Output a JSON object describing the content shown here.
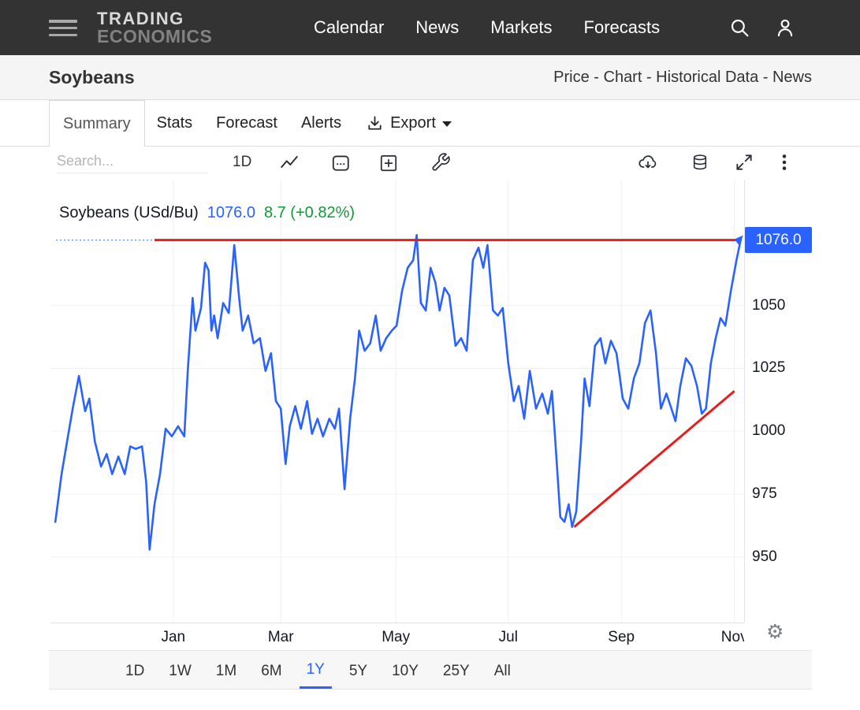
{
  "header": {
    "logo_line1": "TRADING",
    "logo_line2": "ECONOMICS",
    "nav": [
      "Calendar",
      "News",
      "Markets",
      "Forecasts"
    ]
  },
  "title_bar": {
    "title": "Soybeans",
    "links": "Price - Chart - Historical Data - News"
  },
  "tabs": {
    "items": [
      "Summary",
      "Stats",
      "Forecast",
      "Alerts"
    ],
    "active": "Summary",
    "export_label": "Export"
  },
  "toolbar": {
    "search_placeholder": "Search...",
    "interval_label": "1D"
  },
  "range_bar": {
    "items": [
      "1D",
      "1W",
      "1M",
      "6M",
      "1Y",
      "5Y",
      "10Y",
      "25Y",
      "All"
    ],
    "active": "1Y"
  },
  "colors": {
    "accent_blue": "#2962ff",
    "drawing_red": "#e91c1c",
    "change_green": "#0a9e32",
    "header_bg": "#333333"
  },
  "icons": {
    "menu-icon": "hamburger-bars",
    "search-icon": "magnifier",
    "user-icon": "person-outline",
    "export-icon": "download-arrow-tray",
    "caret-down-icon": "css-triangle",
    "line-style-icon": "zigzag-line",
    "calendar-icon": "calendar",
    "compare-icon": "plus-square",
    "indicators-icon": "wrench",
    "cloud-download-icon": "cloud-with-down-arrow",
    "data-icon": "database-cylinder",
    "fullscreen-icon": "expand-arrows",
    "more-icon": "kebab-dots",
    "settings-icon": "gear-unicode"
  },
  "chart_data": {
    "type": "line",
    "title": "Soybeans (USd/Bu)",
    "last_price": "1076.0",
    "change": "8.7 (+0.82%)",
    "x_tick_labels": [
      "Jan",
      "Mar",
      "May",
      "Jul",
      "Sep",
      "Nov"
    ],
    "x_tick_pos": [
      0.177,
      0.332,
      0.498,
      0.66,
      0.823,
      0.986
    ],
    "y_ticks": [
      1050,
      1025,
      1000,
      975,
      950
    ],
    "ylim": [
      924,
      1100
    ],
    "grid": true,
    "grid_color": "#f0f0f0",
    "legend_position": "top-left",
    "series": [
      {
        "name": "Soybeans",
        "color": "#2962ff",
        "points": [
          [
            0.007,
            964
          ],
          [
            0.016,
            983
          ],
          [
            0.024,
            996
          ],
          [
            0.032,
            1009
          ],
          [
            0.041,
            1022
          ],
          [
            0.05,
            1008
          ],
          [
            0.056,
            1013
          ],
          [
            0.064,
            996
          ],
          [
            0.073,
            986
          ],
          [
            0.081,
            991
          ],
          [
            0.089,
            983
          ],
          [
            0.098,
            990
          ],
          [
            0.107,
            983
          ],
          [
            0.115,
            994
          ],
          [
            0.123,
            993
          ],
          [
            0.132,
            994
          ],
          [
            0.138,
            980
          ],
          [
            0.143,
            953
          ],
          [
            0.15,
            971
          ],
          [
            0.158,
            983
          ],
          [
            0.166,
            1001
          ],
          [
            0.175,
            998
          ],
          [
            0.184,
            1002
          ],
          [
            0.193,
            998
          ],
          [
            0.198,
            1024
          ],
          [
            0.205,
            1053
          ],
          [
            0.209,
            1040
          ],
          [
            0.217,
            1049
          ],
          [
            0.223,
            1067
          ],
          [
            0.228,
            1064
          ],
          [
            0.232,
            1040
          ],
          [
            0.236,
            1046
          ],
          [
            0.241,
            1037
          ],
          [
            0.249,
            1051
          ],
          [
            0.257,
            1047
          ],
          [
            0.265,
            1074
          ],
          [
            0.272,
            1053
          ],
          [
            0.277,
            1040
          ],
          [
            0.285,
            1046
          ],
          [
            0.293,
            1035
          ],
          [
            0.302,
            1037
          ],
          [
            0.31,
            1024
          ],
          [
            0.318,
            1031
          ],
          [
            0.325,
            1012
          ],
          [
            0.332,
            1009
          ],
          [
            0.339,
            987
          ],
          [
            0.345,
            1002
          ],
          [
            0.353,
            1010
          ],
          [
            0.361,
            1001
          ],
          [
            0.37,
            1012
          ],
          [
            0.377,
            999
          ],
          [
            0.385,
            1005
          ],
          [
            0.393,
            998
          ],
          [
            0.402,
            1005
          ],
          [
            0.41,
            1001
          ],
          [
            0.416,
            1009
          ],
          [
            0.424,
            977
          ],
          [
            0.432,
            1005
          ],
          [
            0.439,
            1021
          ],
          [
            0.445,
            1040
          ],
          [
            0.453,
            1032
          ],
          [
            0.461,
            1035
          ],
          [
            0.469,
            1046
          ],
          [
            0.476,
            1032
          ],
          [
            0.484,
            1037
          ],
          [
            0.492,
            1040
          ],
          [
            0.499,
            1042
          ],
          [
            0.507,
            1056
          ],
          [
            0.515,
            1065
          ],
          [
            0.523,
            1068
          ],
          [
            0.528,
            1078
          ],
          [
            0.534,
            1051
          ],
          [
            0.541,
            1048
          ],
          [
            0.548,
            1065
          ],
          [
            0.555,
            1059
          ],
          [
            0.561,
            1048
          ],
          [
            0.568,
            1057
          ],
          [
            0.575,
            1054
          ],
          [
            0.584,
            1034
          ],
          [
            0.592,
            1037
          ],
          [
            0.6,
            1032
          ],
          [
            0.609,
            1068
          ],
          [
            0.617,
            1073
          ],
          [
            0.624,
            1065
          ],
          [
            0.63,
            1074
          ],
          [
            0.638,
            1048
          ],
          [
            0.645,
            1046
          ],
          [
            0.652,
            1049
          ],
          [
            0.66,
            1027
          ],
          [
            0.668,
            1012
          ],
          [
            0.675,
            1018
          ],
          [
            0.683,
            1005
          ],
          [
            0.691,
            1024
          ],
          [
            0.7,
            1009
          ],
          [
            0.709,
            1015
          ],
          [
            0.717,
            1007
          ],
          [
            0.723,
            1016
          ],
          [
            0.73,
            987
          ],
          [
            0.735,
            966
          ],
          [
            0.741,
            964
          ],
          [
            0.747,
            971
          ],
          [
            0.752,
            962
          ],
          [
            0.758,
            968
          ],
          [
            0.765,
            996
          ],
          [
            0.77,
            1021
          ],
          [
            0.777,
            1010
          ],
          [
            0.785,
            1034
          ],
          [
            0.793,
            1037
          ],
          [
            0.8,
            1027
          ],
          [
            0.808,
            1036
          ],
          [
            0.816,
            1031
          ],
          [
            0.825,
            1013
          ],
          [
            0.833,
            1009
          ],
          [
            0.841,
            1021
          ],
          [
            0.849,
            1027
          ],
          [
            0.857,
            1043
          ],
          [
            0.865,
            1048
          ],
          [
            0.873,
            1031
          ],
          [
            0.88,
            1009
          ],
          [
            0.888,
            1015
          ],
          [
            0.894,
            1010
          ],
          [
            0.901,
            1004
          ],
          [
            0.908,
            1018
          ],
          [
            0.916,
            1029
          ],
          [
            0.924,
            1026
          ],
          [
            0.932,
            1018
          ],
          [
            0.939,
            1007
          ],
          [
            0.945,
            1009
          ],
          [
            0.952,
            1027
          ],
          [
            0.959,
            1037
          ],
          [
            0.966,
            1045
          ],
          [
            0.973,
            1042
          ],
          [
            0.981,
            1056
          ],
          [
            0.989,
            1068
          ],
          [
            0.995,
            1076
          ]
        ]
      }
    ],
    "annotations": {
      "current_price_dotted": {
        "type": "hline",
        "price": 1076,
        "t1": 0.008,
        "t2": 0.992,
        "color": "#2962ff",
        "dashed": true
      },
      "resistance_line": {
        "type": "hline",
        "price": 1076,
        "t1": 0.15,
        "t2": 0.992,
        "color": "#e91c1c"
      },
      "support_trendline": {
        "type": "segment",
        "t1": 0.755,
        "p1": 962,
        "t2": 0.986,
        "p2": 1016,
        "color": "#e91c1c"
      }
    }
  }
}
